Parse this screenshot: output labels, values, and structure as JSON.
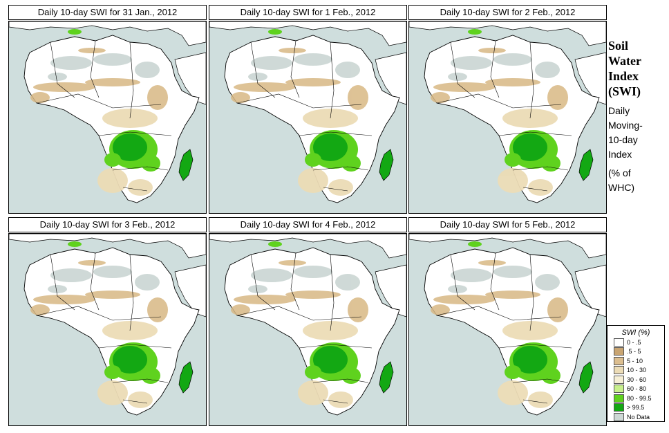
{
  "panels": [
    {
      "title": "Daily 10-day SWI for  31 Jan., 2012"
    },
    {
      "title": "Daily 10-day SWI for  1 Feb., 2012"
    },
    {
      "title": "Daily 10-day SWI for  2 Feb., 2012"
    },
    {
      "title": "Daily 10-day SWI for  3 Feb., 2012"
    },
    {
      "title": "Daily 10-day SWI for  4 Feb., 2012"
    },
    {
      "title": "Daily 10-day SWI for  5 Feb., 2012"
    }
  ],
  "sidebar": {
    "title_lines": [
      "Soil",
      "Water",
      "Index",
      "(SWI)"
    ],
    "subtitle_lines": [
      "Daily",
      "Moving-",
      "10-day",
      "Index"
    ],
    "unit_lines": [
      "(% of",
      "WHC)"
    ]
  },
  "legend": {
    "title": "SWI (%)",
    "items": [
      {
        "label": "0 - .5",
        "color": "#ffffff"
      },
      {
        "label": ".5 - 5",
        "color": "#c9a572"
      },
      {
        "label": "5 - 10",
        "color": "#dcbe8f"
      },
      {
        "label": "10 - 30",
        "color": "#ecdcb6"
      },
      {
        "label": "30 - 60",
        "color": "#f6efd6"
      },
      {
        "label": "60 - 80",
        "color": "#c8f08c"
      },
      {
        "label": "80 - 99.5",
        "color": "#5fd21e"
      },
      {
        "label": "> 99.5",
        "color": "#13a813"
      },
      {
        "label": "No Data",
        "color": "#cdd8d5"
      }
    ]
  },
  "colors": {
    "ocean": "#cfdedd",
    "land": "#ffffff",
    "nodata": "#cdd8d5",
    "dry": "#d8b884",
    "mid": "#ecdcb6",
    "wet": "#5fd21e",
    "saturated": "#13a813"
  }
}
